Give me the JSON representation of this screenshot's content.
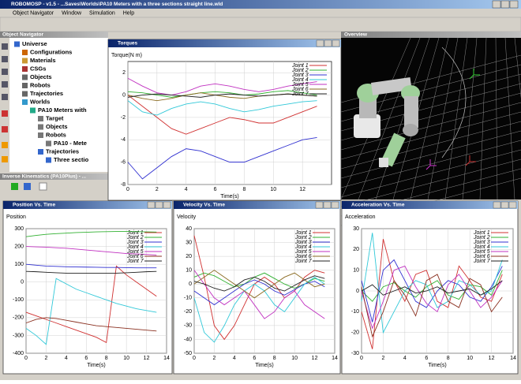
{
  "app": {
    "title": "ROBOMOSP - v1.5 - ...Saves\\Worlds\\PA10 Meters with a three sections straight line.wld",
    "menu": [
      "Object Navigator",
      "Window",
      "Simulation",
      "Help"
    ]
  },
  "navigator": {
    "title": "Object Navigator",
    "items": [
      "Universe",
      "Configurations",
      "Materials",
      "CSGs",
      "Objects",
      "Robots",
      "Trajectories",
      "Worlds",
      "PA10 Meters with",
      "Target",
      "Objects",
      "Robots",
      "PA10 - Mete",
      "Trajectories",
      "Three sectio"
    ]
  },
  "ik_panel": {
    "title": "Inverse Kinematics (PA10Plus) - ..."
  },
  "viewport": {
    "title": "Overview"
  },
  "chart_data": [
    {
      "type": "line",
      "title": "Torques",
      "y_label": "Torque(N m)",
      "x_label": "Time(s)",
      "grid": true,
      "x": [
        0,
        1,
        2,
        3,
        4,
        5,
        6,
        7,
        8,
        9,
        10,
        11,
        12,
        13
      ],
      "xlim": [
        0,
        14
      ],
      "xticks": [
        0,
        2,
        4,
        6,
        8,
        10,
        12
      ],
      "ylim": [
        -8,
        3
      ],
      "yticks": [
        2,
        0,
        -2,
        -4,
        -6,
        -8
      ],
      "series": [
        {
          "name": "Joint 1",
          "color": "#d03030",
          "values": [
            0,
            -1,
            -2,
            -3,
            -3.5,
            -3,
            -2.5,
            -2,
            -2.2,
            -2.5,
            -2.5,
            -2,
            -1.5,
            -1
          ]
        },
        {
          "name": "Joint 2",
          "color": "#30b030",
          "values": [
            0.3,
            0.2,
            0,
            -0.2,
            0,
            0.2,
            0.3,
            0.2,
            0,
            0.1,
            0.3,
            0.4,
            0.2,
            0
          ]
        },
        {
          "name": "Joint 3",
          "color": "#3030d0",
          "values": [
            -6,
            -7.5,
            -6.5,
            -5.5,
            -4.8,
            -5,
            -5.5,
            -6,
            -6,
            -5.5,
            -5,
            -4.5,
            -4,
            -3.8
          ]
        },
        {
          "name": "Joint 4",
          "color": "#30c8d8",
          "values": [
            -0.5,
            -1.5,
            -1.8,
            -1.2,
            -0.8,
            -0.6,
            -0.8,
            -1.2,
            -1.5,
            -1.3,
            -1,
            -0.8,
            -0.6,
            -0.5
          ]
        },
        {
          "name": "Joint 5",
          "color": "#c030c0",
          "values": [
            1.5,
            0.8,
            0.2,
            0,
            0.3,
            0.8,
            1,
            0.8,
            0.5,
            0.3,
            0.5,
            0.8,
            1,
            1.2
          ]
        },
        {
          "name": "Joint 6",
          "color": "#8a6a20",
          "values": [
            0,
            -0.3,
            -0.5,
            -0.3,
            0,
            0.2,
            0,
            -0.2,
            -0.3,
            -0.1,
            0,
            0.1,
            0,
            -0.1
          ]
        },
        {
          "name": "Joint 7",
          "color": "#202020",
          "values": [
            -0.2,
            0,
            0.1,
            0,
            -0.1,
            -0.2,
            0,
            0.1,
            0,
            -0.1,
            0,
            0.1,
            0,
            -0.1
          ]
        }
      ]
    },
    {
      "type": "line",
      "title": "Position Vs. Time",
      "y_label": "Position",
      "x_label": "Time(s)",
      "grid": true,
      "x": [
        0,
        1,
        2,
        3,
        4,
        5,
        6,
        7,
        8,
        9,
        10,
        11,
        12,
        13
      ],
      "xlim": [
        0,
        14
      ],
      "xticks": [
        0,
        2,
        4,
        6,
        8,
        10,
        12,
        14
      ],
      "ylim": [
        -400,
        300
      ],
      "yticks": [
        300,
        200,
        100,
        0,
        -100,
        -200,
        -300,
        -400
      ],
      "series": [
        {
          "name": "Joint 1",
          "color": "#d03030",
          "values": [
            -170,
            -190,
            -210,
            -230,
            -250,
            -270,
            -290,
            -310,
            -340,
            90,
            40,
            0,
            -40,
            -80
          ]
        },
        {
          "name": "Joint 2",
          "color": "#30b030",
          "values": [
            255,
            262,
            268,
            272,
            275,
            278,
            280,
            282,
            283,
            284,
            284,
            283,
            282,
            281
          ]
        },
        {
          "name": "Joint 3",
          "color": "#3030d0",
          "values": [
            100,
            95,
            90,
            88,
            86,
            85,
            84,
            83,
            82,
            82,
            81,
            80,
            80,
            80
          ]
        },
        {
          "name": "Joint 4",
          "color": "#30c8d8",
          "values": [
            -260,
            -300,
            -350,
            20,
            -10,
            -40,
            -60,
            -80,
            -100,
            -120,
            -135,
            -150,
            -160,
            -170
          ]
        },
        {
          "name": "Joint 5",
          "color": "#c030c0",
          "values": [
            200,
            198,
            196,
            193,
            190,
            185,
            180,
            175,
            170,
            165,
            160,
            158,
            155,
            152
          ]
        },
        {
          "name": "Joint 6",
          "color": "#8a3020",
          "values": [
            -230,
            -210,
            -200,
            -205,
            -215,
            -225,
            -235,
            -245,
            -250,
            -255,
            -260,
            -265,
            -270,
            -275
          ]
        },
        {
          "name": "Joint 7",
          "color": "#202020",
          "values": [
            60,
            58,
            55,
            52,
            50,
            50,
            50,
            50,
            50,
            50,
            52,
            55,
            58,
            60
          ]
        }
      ]
    },
    {
      "type": "line",
      "title": "Velocity Vs. Time",
      "y_label": "Velocity",
      "x_label": "Time(s)",
      "grid": true,
      "x": [
        0,
        1,
        2,
        3,
        4,
        5,
        6,
        7,
        8,
        9,
        10,
        11,
        12,
        13
      ],
      "xlim": [
        0,
        14
      ],
      "xticks": [
        0,
        2,
        4,
        6,
        8,
        10,
        12,
        14
      ],
      "ylim": [
        -50,
        40
      ],
      "yticks": [
        40,
        30,
        20,
        10,
        0,
        -10,
        -20,
        -30,
        -40,
        -50
      ],
      "series": [
        {
          "name": "Joint 1",
          "color": "#d03030",
          "values": [
            35,
            5,
            -30,
            -40,
            -30,
            -15,
            0,
            5,
            0,
            -10,
            -5,
            5,
            10,
            8
          ]
        },
        {
          "name": "Joint 2",
          "color": "#30b030",
          "values": [
            5,
            8,
            6,
            2,
            -2,
            0,
            5,
            8,
            4,
            0,
            -3,
            0,
            4,
            2
          ]
        },
        {
          "name": "Joint 3",
          "color": "#3030d0",
          "values": [
            -5,
            -10,
            -15,
            -10,
            -5,
            0,
            3,
            0,
            -5,
            -8,
            -4,
            0,
            2,
            -2
          ]
        },
        {
          "name": "Joint 4",
          "color": "#30c8d8",
          "values": [
            -10,
            -35,
            -42,
            -30,
            -15,
            -5,
            0,
            -5,
            -15,
            -20,
            -10,
            0,
            5,
            0
          ]
        },
        {
          "name": "Joint 5",
          "color": "#c030c0",
          "values": [
            10,
            0,
            -10,
            -15,
            -10,
            -5,
            -15,
            -25,
            -20,
            -10,
            -5,
            -15,
            -20,
            -25
          ]
        },
        {
          "name": "Joint 6",
          "color": "#8a6a20",
          "values": [
            0,
            5,
            10,
            5,
            0,
            -5,
            -10,
            -5,
            0,
            5,
            8,
            3,
            -2,
            0
          ]
        },
        {
          "name": "Joint 7",
          "color": "#202020",
          "values": [
            2,
            0,
            -3,
            -5,
            -2,
            3,
            5,
            2,
            -3,
            -5,
            -1,
            3,
            6,
            4
          ]
        }
      ]
    },
    {
      "type": "line",
      "title": "Acceleration Vs. Time",
      "y_label": "Acceleration",
      "x_label": "Time(s)",
      "grid": true,
      "x": [
        0,
        1,
        2,
        3,
        4,
        5,
        6,
        7,
        8,
        9,
        10,
        11,
        12,
        13
      ],
      "xlim": [
        0,
        14
      ],
      "xticks": [
        0,
        2,
        4,
        6,
        8,
        10,
        12,
        14
      ],
      "ylim": [
        -30,
        30
      ],
      "yticks": [
        30,
        20,
        10,
        0,
        -10,
        -20,
        -30
      ],
      "series": [
        {
          "name": "Joint 1",
          "color": "#d03030",
          "values": [
            -10,
            -28,
            25,
            5,
            -5,
            8,
            10,
            -5,
            -8,
            12,
            5,
            -3,
            -5,
            8
          ]
        },
        {
          "name": "Joint 2",
          "color": "#30b030",
          "values": [
            0,
            -5,
            2,
            4,
            0,
            -3,
            2,
            5,
            -2,
            -4,
            3,
            2,
            -2,
            10
          ]
        },
        {
          "name": "Joint 3",
          "color": "#3030d0",
          "values": [
            5,
            -15,
            10,
            15,
            5,
            -5,
            -8,
            0,
            5,
            3,
            -3,
            -5,
            2,
            12
          ]
        },
        {
          "name": "Joint 4",
          "color": "#30c8d8",
          "values": [
            -5,
            28,
            -20,
            -10,
            0,
            5,
            3,
            -8,
            -5,
            5,
            3,
            -2,
            0,
            15
          ]
        },
        {
          "name": "Joint 5",
          "color": "#c030c0",
          "values": [
            0,
            -18,
            -5,
            10,
            12,
            2,
            -6,
            -10,
            3,
            8,
            0,
            -8,
            -3,
            5
          ]
        },
        {
          "name": "Joint 6",
          "color": "#8a3020",
          "values": [
            2,
            -22,
            -10,
            5,
            -2,
            -12,
            5,
            8,
            -5,
            -8,
            6,
            3,
            -10,
            -3
          ]
        },
        {
          "name": "Joint 7",
          "color": "#202020",
          "values": [
            0,
            3,
            -2,
            0,
            2,
            -1,
            0,
            2,
            -1,
            0,
            1,
            -2,
            1,
            5
          ]
        }
      ]
    }
  ]
}
